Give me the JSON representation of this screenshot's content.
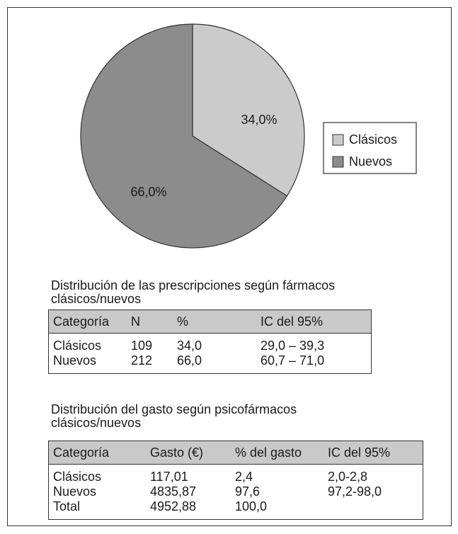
{
  "chart_data": {
    "type": "pie",
    "categories": [
      "Clásicos",
      "Nuevos"
    ],
    "values": [
      34.0,
      66.0
    ],
    "value_labels": [
      "34,0%",
      "66,0%"
    ],
    "colors": [
      "#cbcbcb",
      "#8c8c8c"
    ],
    "legend": "right"
  },
  "tables": [
    {
      "title": "Distribución de las prescripciones según fármacos clásicos/nuevos",
      "header": [
        "Categoría",
        "N",
        "%",
        "IC del 95%"
      ],
      "rows": [
        [
          "Clásicos",
          "109",
          "34,0",
          "29,0 – 39,3"
        ],
        [
          "Nuevos",
          "212",
          "66,0",
          "60,7 – 71,0"
        ]
      ]
    },
    {
      "title": "Distribución del gasto según psicofármacos clásicos/nuevos",
      "header": [
        "Categoría",
        "Gasto (€)",
        "% del gasto",
        "IC del 95%"
      ],
      "rows": [
        [
          "Clásicos",
          "117,01",
          "2,4",
          "2,0-2,8"
        ],
        [
          "Nuevos",
          "4835,87",
          "97,6",
          "97,2-98,0"
        ],
        [
          "Total",
          "4952,88",
          "100,0",
          ""
        ]
      ]
    }
  ]
}
